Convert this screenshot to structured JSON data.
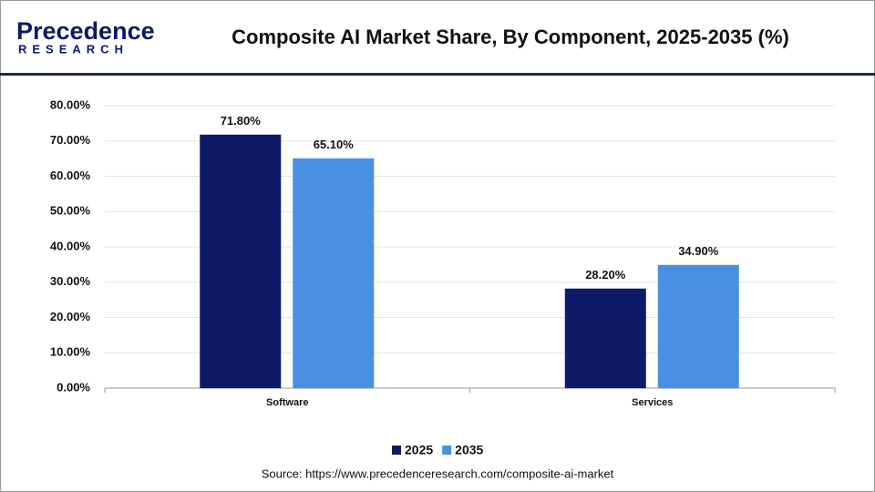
{
  "logo": {
    "name": "Precedence",
    "tagline": "RESEARCH"
  },
  "chart_data": {
    "type": "bar",
    "title": "Composite AI Market Share, By Component, 2025-2035 (%)",
    "categories": [
      "Software",
      "Services"
    ],
    "series": [
      {
        "name": "2025",
        "color": "#0c1a67",
        "values": [
          71.8,
          28.2
        ],
        "value_labels": [
          "71.80%",
          "28.20%"
        ]
      },
      {
        "name": "2035",
        "color": "#4a90e2",
        "values": [
          65.1,
          34.9
        ],
        "value_labels": [
          "65.10%",
          "34.90%"
        ]
      }
    ],
    "ylim": [
      0,
      80
    ],
    "yticks": [
      {
        "value": 0,
        "label": "0.00%"
      },
      {
        "value": 10,
        "label": "10.00%"
      },
      {
        "value": 20,
        "label": "20.00%"
      },
      {
        "value": 30,
        "label": "30.00%"
      },
      {
        "value": 40,
        "label": "40.00%"
      },
      {
        "value": 50,
        "label": "50.00%"
      },
      {
        "value": 60,
        "label": "60.00%"
      },
      {
        "value": 70,
        "label": "70.00%"
      },
      {
        "value": 80,
        "label": "80.00%"
      }
    ],
    "grid": true,
    "legend": "bottom",
    "source": "Source: https://www.precedenceresearch.com/composite-ai-market"
  }
}
